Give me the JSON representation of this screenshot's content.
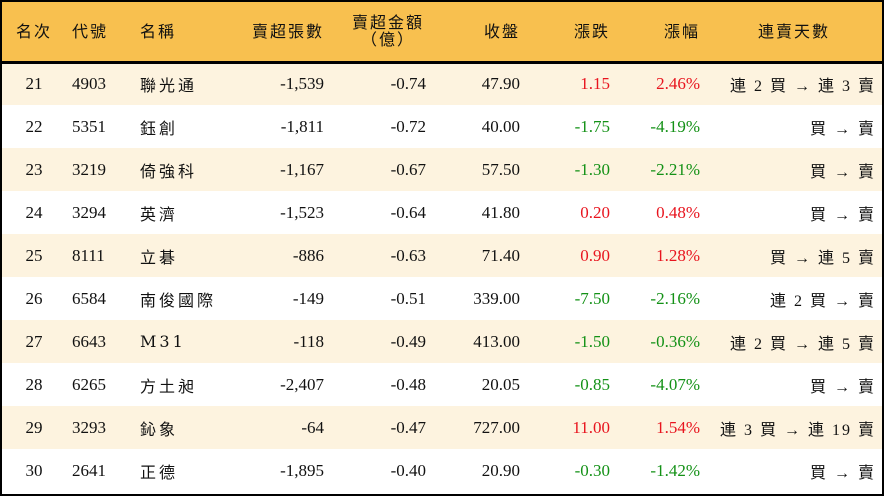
{
  "table": {
    "headers": {
      "rank": "名次",
      "code": "代號",
      "name": "名稱",
      "net_sell_lots": "賣超張數",
      "net_sell_amount_line1": "賣超金額",
      "net_sell_amount_line2": "（億）",
      "close": "收盤",
      "change": "漲跌",
      "change_pct": "漲幅",
      "streak": "連賣天數"
    },
    "rows": [
      {
        "rank": "21",
        "code": "4903",
        "name": "聯光通",
        "net_sell_lots": "-1,539",
        "net_sell_amount": "-0.74",
        "close": "47.90",
        "change": "1.15",
        "change_pct": "2.46%",
        "direction": "up",
        "streak": "連 2 買 → 連 3 賣"
      },
      {
        "rank": "22",
        "code": "5351",
        "name": "鈺創",
        "net_sell_lots": "-1,811",
        "net_sell_amount": "-0.72",
        "close": "40.00",
        "change": "-1.75",
        "change_pct": "-4.19%",
        "direction": "down",
        "streak": "買 → 賣"
      },
      {
        "rank": "23",
        "code": "3219",
        "name": "倚強科",
        "net_sell_lots": "-1,167",
        "net_sell_amount": "-0.67",
        "close": "57.50",
        "change": "-1.30",
        "change_pct": "-2.21%",
        "direction": "down",
        "streak": "買 → 賣"
      },
      {
        "rank": "24",
        "code": "3294",
        "name": "英濟",
        "net_sell_lots": "-1,523",
        "net_sell_amount": "-0.64",
        "close": "41.80",
        "change": "0.20",
        "change_pct": "0.48%",
        "direction": "up",
        "streak": "買 → 賣"
      },
      {
        "rank": "25",
        "code": "8111",
        "name": "立碁",
        "net_sell_lots": "-886",
        "net_sell_amount": "-0.63",
        "close": "71.40",
        "change": "0.90",
        "change_pct": "1.28%",
        "direction": "up",
        "streak": "買 → 連 5 賣"
      },
      {
        "rank": "26",
        "code": "6584",
        "name": "南俊國際",
        "net_sell_lots": "-149",
        "net_sell_amount": "-0.51",
        "close": "339.00",
        "change": "-7.50",
        "change_pct": "-2.16%",
        "direction": "down",
        "streak": "連 2 買 → 賣"
      },
      {
        "rank": "27",
        "code": "6643",
        "name": "M31",
        "net_sell_lots": "-118",
        "net_sell_amount": "-0.49",
        "close": "413.00",
        "change": "-1.50",
        "change_pct": "-0.36%",
        "direction": "down",
        "streak": "連 2 買 → 連 5 賣"
      },
      {
        "rank": "28",
        "code": "6265",
        "name": "方土昶",
        "net_sell_lots": "-2,407",
        "net_sell_amount": "-0.48",
        "close": "20.05",
        "change": "-0.85",
        "change_pct": "-4.07%",
        "direction": "down",
        "streak": "買 → 賣"
      },
      {
        "rank": "29",
        "code": "3293",
        "name": "鈊象",
        "net_sell_lots": "-64",
        "net_sell_amount": "-0.47",
        "close": "727.00",
        "change": "11.00",
        "change_pct": "1.54%",
        "direction": "up",
        "streak": "連 3 買 → 連 19 賣"
      },
      {
        "rank": "30",
        "code": "2641",
        "name": "正德",
        "net_sell_lots": "-1,895",
        "net_sell_amount": "-0.40",
        "close": "20.90",
        "change": "-0.30",
        "change_pct": "-1.42%",
        "direction": "down",
        "streak": "買 → 賣"
      }
    ]
  },
  "colors": {
    "header_bg": "#f8c04f",
    "row_odd_bg": "#fdf3df",
    "row_even_bg": "#ffffff",
    "up": "#e8141e",
    "down": "#139116"
  }
}
